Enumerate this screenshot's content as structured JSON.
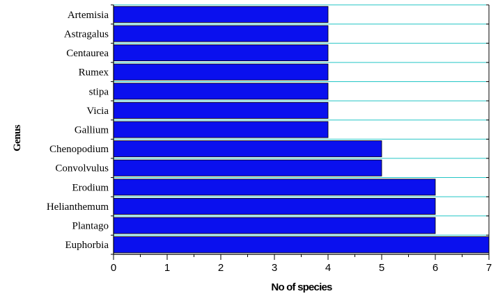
{
  "chart_data": {
    "type": "bar",
    "orientation": "horizontal",
    "categories": [
      "Artemisia",
      "Astragalus",
      "Centaurea",
      "Rumex",
      "stipa",
      "Vicia",
      "Gallium",
      "Chenopodium",
      "Convolvulus",
      "Erodium",
      "Helianthemum",
      "Plantago",
      "Euphorbia"
    ],
    "values": [
      4,
      4,
      4,
      4,
      4,
      4,
      4,
      5,
      5,
      6,
      6,
      6,
      7
    ],
    "xlabel": "No of species",
    "ylabel": "Genus",
    "xlim": [
      0,
      7
    ],
    "xticks": [
      "0",
      "1",
      "2",
      "3",
      "4",
      "5",
      "6",
      "7"
    ],
    "grid": "horizontal",
    "colors": {
      "bar": "#0a10ee",
      "grid": "#22c5c5",
      "axis": "#000000"
    }
  }
}
